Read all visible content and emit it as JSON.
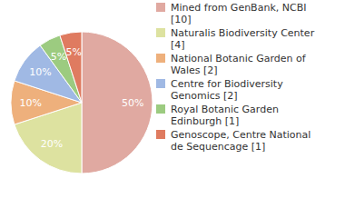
{
  "chart_data": {
    "type": "pie",
    "categories": [
      "Mined from GenBank, NCBI [10]",
      "Naturalis Biodiversity Center [4]",
      "National Botanic Garden of Wales [2]",
      "Centre for Biodiversity Genomics [2]",
      "Royal Botanic Garden Edinburgh [1]",
      "Genoscope, Centre National de Sequencage [1]"
    ],
    "values": [
      50,
      20,
      10,
      10,
      5,
      5
    ],
    "value_labels": [
      "50%",
      "20%",
      "10%",
      "10%",
      "5%",
      "5%"
    ],
    "data_labels": true,
    "colors": [
      "#e0a9a1",
      "#dde2a0",
      "#eeb07c",
      "#a0b9e4",
      "#9ccb80",
      "#df7b60"
    ]
  }
}
